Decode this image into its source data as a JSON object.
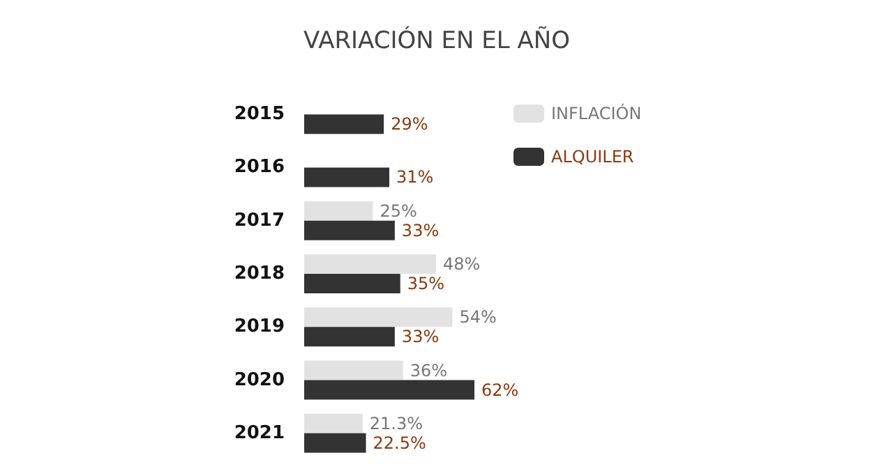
{
  "chart_data": {
    "type": "bar",
    "orientation": "horizontal",
    "title": "VARIACIÓN EN EL AÑO",
    "categories": [
      "2015",
      "2016",
      "2017",
      "2018",
      "2019",
      "2020",
      "2021"
    ],
    "legend": "top right",
    "series": [
      {
        "name": "INFLACIÓN",
        "color": "#e2e2e2",
        "values": [
          null,
          null,
          25,
          48,
          54,
          36,
          21.3
        ],
        "value_labels": [
          null,
          null,
          "25%",
          "48%",
          "54%",
          "36%",
          "21.3%"
        ]
      },
      {
        "name": "ALQUILER",
        "color": "#333333",
        "values": [
          29,
          31,
          33,
          35,
          33,
          62,
          22.5
        ],
        "value_labels": [
          "29%",
          "31%",
          "33%",
          "35%",
          "33%",
          "62%",
          "22.5%"
        ]
      }
    ]
  }
}
